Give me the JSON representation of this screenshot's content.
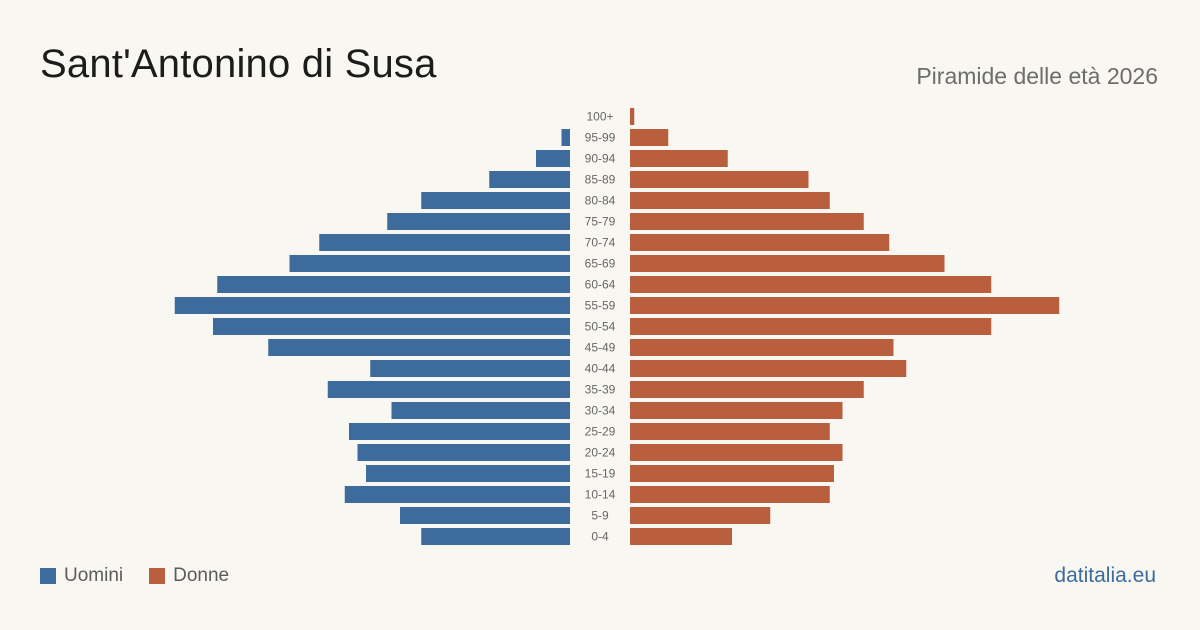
{
  "header": {
    "title": "Sant'Antonino di Susa",
    "subtitle": "Piramide delle età 2026"
  },
  "legend": {
    "men_label": "Uomini",
    "women_label": "Donne"
  },
  "brand": "datitalia.eu",
  "colors": {
    "men": "#3d6b9c",
    "women": "#b95f3d",
    "background": "#f9f7f2",
    "brand": "#3d6b9c"
  },
  "chart_data": {
    "type": "bar",
    "orientation": "horizontal-pyramid",
    "categories": [
      "100+",
      "95-99",
      "90-94",
      "85-89",
      "80-84",
      "75-79",
      "70-74",
      "65-69",
      "60-64",
      "55-59",
      "50-54",
      "45-49",
      "40-44",
      "35-39",
      "30-34",
      "25-29",
      "20-24",
      "15-19",
      "10-14",
      "5-9",
      "0-4"
    ],
    "series": [
      {
        "name": "Uomini",
        "values": [
          0,
          2,
          8,
          19,
          35,
          43,
          59,
          66,
          83,
          93,
          84,
          71,
          47,
          57,
          42,
          52,
          50,
          48,
          53,
          40,
          35
        ]
      },
      {
        "name": "Donne",
        "values": [
          1,
          9,
          23,
          42,
          47,
          55,
          61,
          74,
          85,
          101,
          85,
          62,
          65,
          55,
          50,
          47,
          50,
          48,
          47,
          33,
          24
        ]
      }
    ],
    "legend_position": "bottom-left",
    "grid": false
  }
}
